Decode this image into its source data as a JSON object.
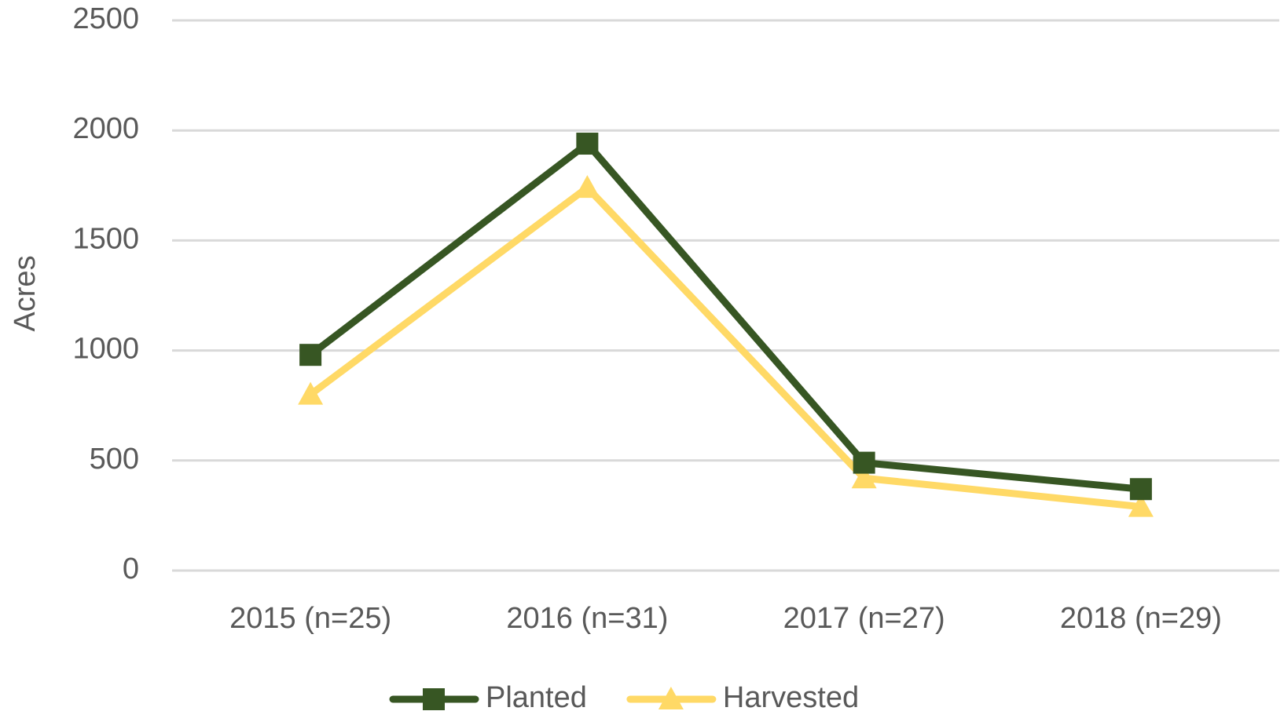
{
  "chart_data": {
    "type": "line",
    "y_label": "Acres",
    "categories": [
      "2015 (n=25)",
      "2016 (n=31)",
      "2017 (n=27)",
      "2018 (n=29)"
    ],
    "series": [
      {
        "name": "Planted",
        "color": "#375623",
        "marker": "square",
        "values": [
          980,
          1940,
          490,
          370
        ]
      },
      {
        "name": "Harvested",
        "color": "#ffd966",
        "marker": "triangle",
        "values": [
          800,
          1740,
          420,
          290
        ]
      }
    ],
    "ylim": [
      0,
      2500
    ],
    "yticks": [
      0,
      500,
      1000,
      1500,
      2000,
      2500
    ],
    "grid": true,
    "legend": "bottom"
  }
}
